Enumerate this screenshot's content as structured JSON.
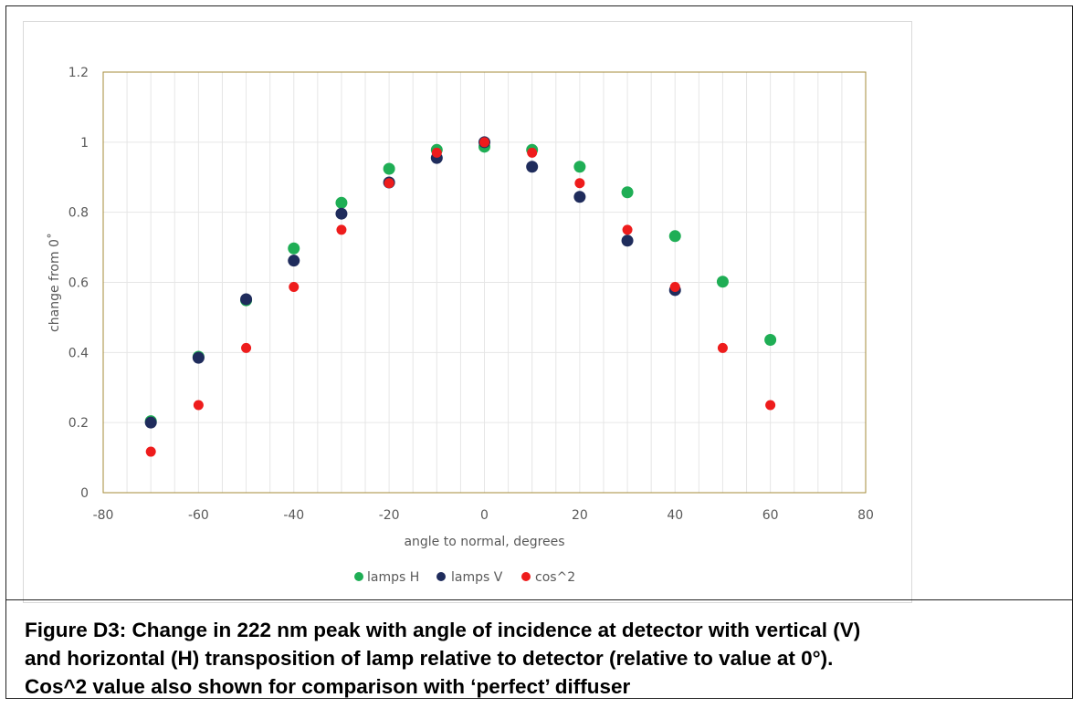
{
  "chart_data": {
    "type": "scatter",
    "xlabel": "angle to normal, degrees",
    "ylabel": "change from 0˚",
    "xlim": [
      -80,
      80
    ],
    "ylim": [
      0,
      1.2
    ],
    "x_ticks": [
      -80,
      -60,
      -40,
      -20,
      0,
      20,
      40,
      60,
      80
    ],
    "y_ticks": [
      0,
      0.2,
      0.4,
      0.6,
      0.8,
      1,
      1.2
    ],
    "grid": true,
    "legend_position": "bottom",
    "series": [
      {
        "name": "lamps H",
        "color": "#1fae55",
        "points": [
          [
            -70,
            0.204
          ],
          [
            -60,
            0.388
          ],
          [
            -50,
            0.549
          ],
          [
            -40,
            0.697
          ],
          [
            -30,
            0.827
          ],
          [
            -20,
            0.924
          ],
          [
            -10,
            0.978
          ],
          [
            0,
            0.987
          ],
          [
            10,
            0.978
          ],
          [
            20,
            0.93
          ],
          [
            30,
            0.857
          ],
          [
            40,
            0.732
          ],
          [
            50,
            0.602
          ],
          [
            60,
            0.436
          ]
        ]
      },
      {
        "name": "lamps V",
        "color": "#1f2c5c",
        "points": [
          [
            -70,
            0.2
          ],
          [
            -60,
            0.385
          ],
          [
            -50,
            0.552
          ],
          [
            -40,
            0.662
          ],
          [
            -30,
            0.796
          ],
          [
            -20,
            0.885
          ],
          [
            -10,
            0.955
          ],
          [
            0,
            1.0
          ],
          [
            10,
            0.93
          ],
          [
            20,
            0.844
          ],
          [
            30,
            0.719
          ],
          [
            40,
            0.578
          ]
        ]
      },
      {
        "name": "cos^2",
        "color": "#ee1c1c",
        "points": [
          [
            -70,
            0.117
          ],
          [
            -60,
            0.25
          ],
          [
            -50,
            0.413
          ],
          [
            -40,
            0.587
          ],
          [
            -30,
            0.75
          ],
          [
            -20,
            0.883
          ],
          [
            -10,
            0.97
          ],
          [
            0,
            1.0
          ],
          [
            10,
            0.97
          ],
          [
            20,
            0.883
          ],
          [
            30,
            0.75
          ],
          [
            40,
            0.587
          ],
          [
            50,
            0.413
          ],
          [
            60,
            0.25
          ]
        ]
      }
    ]
  },
  "caption": {
    "line1": "Figure D3: Change in 222 nm peak with angle of incidence at detector with vertical (V)",
    "line2": "and horizontal (H) transposition of lamp relative to detector (relative to value at 0°).",
    "line3": "Cos^2 value also shown for comparison with ‘perfect’ diffuser"
  }
}
